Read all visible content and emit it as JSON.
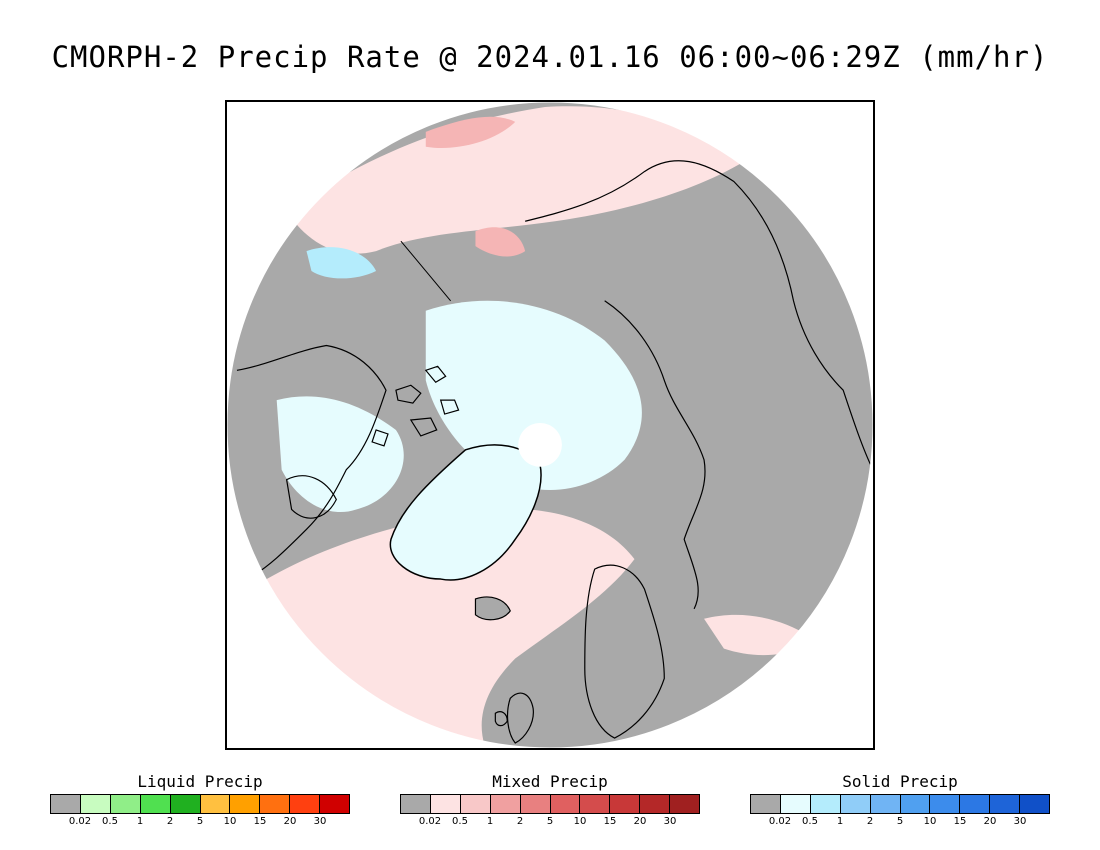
{
  "title": "CMORPH-2 Precip Rate @ 2024.01.16 06:00~06:29Z (mm/hr)",
  "map": {
    "projection": "north polar stereographic",
    "colors": {
      "background": "#a9a9a9",
      "light_mixed": "#fde3e3",
      "mixed": "#f5b5b5",
      "heavier_mixed": "#ec9090",
      "light_solid": "#e6fcfe",
      "solid": "#b4ecfc",
      "light_liquid": "#c8fcc0",
      "coastline": "#000000",
      "no_data": "#ffffff"
    }
  },
  "legends": [
    {
      "id": "liquid",
      "title": "Liquid Precip",
      "colors": [
        "#a9a9a9",
        "#c8fcc0",
        "#90ee88",
        "#50e050",
        "#20b020",
        "#ffc040",
        "#ffa000",
        "#ff7010",
        "#ff4010",
        "#d00000"
      ],
      "ticks": [
        "0.02",
        "0.5",
        "1",
        "2",
        "5",
        "10",
        "15",
        "20",
        "30"
      ]
    },
    {
      "id": "mixed",
      "title": "Mixed Precip",
      "colors": [
        "#a9a9a9",
        "#fde3e3",
        "#f8c8c8",
        "#f0a0a0",
        "#e88080",
        "#e06060",
        "#d44c4c",
        "#c83838",
        "#b42828",
        "#a02020"
      ],
      "ticks": [
        "0.02",
        "0.5",
        "1",
        "2",
        "5",
        "10",
        "15",
        "20",
        "30"
      ]
    },
    {
      "id": "solid",
      "title": "Solid Precip",
      "colors": [
        "#a9a9a9",
        "#e6fcfe",
        "#b4ecfc",
        "#90cdf8",
        "#70b4f4",
        "#50a0f0",
        "#3c8cec",
        "#2c78e4",
        "#1e64d8",
        "#1050c8"
      ],
      "ticks": [
        "0.02",
        "0.5",
        "1",
        "2",
        "5",
        "10",
        "15",
        "20",
        "30"
      ]
    }
  ]
}
